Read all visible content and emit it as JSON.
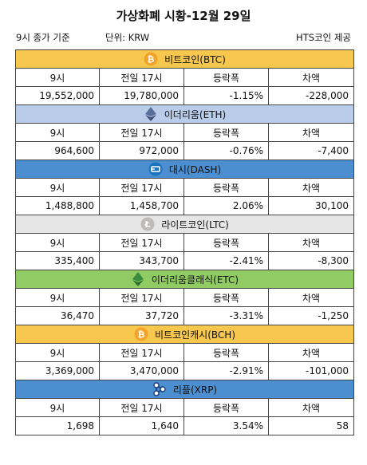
{
  "title": "가상화폐 시황-12월 29일",
  "meta": {
    "time": "9시 종가 기준",
    "unit": "단위: KRW",
    "source": "HTS코인 제공"
  },
  "headers": {
    "c1": "9시",
    "c2": "전일 17시",
    "c3": "등락폭",
    "c4": "차액"
  },
  "colors": {
    "btc": "#f8c84e",
    "eth": "#b9cdea",
    "dash": "#4b8fd0",
    "ltc": "#e6e6e6",
    "etc": "#90cc63",
    "bch": "#f8c84e",
    "xrp": "#4b8fd0"
  },
  "coins": [
    {
      "name": "비트코인(BTC)",
      "icon": "bitcoin-icon",
      "now": "19,552,000",
      "prev": "19,780,000",
      "pct": "-1.15%",
      "diff": "-228,000"
    },
    {
      "name": "이더리움(ETH)",
      "icon": "ethereum-icon",
      "now": "964,600",
      "prev": "972,000",
      "pct": "-0.76%",
      "diff": "-7,400"
    },
    {
      "name": "대시(DASH)",
      "icon": "dash-icon",
      "now": "1,488,800",
      "prev": "1,458,700",
      "pct": "2.06%",
      "diff": "30,100"
    },
    {
      "name": "라이트코인(LTC)",
      "icon": "litecoin-icon",
      "now": "335,400",
      "prev": "343,700",
      "pct": "-2.41%",
      "diff": "-8,300"
    },
    {
      "name": "이더리움클래식(ETC)",
      "icon": "ethereum-classic-icon",
      "now": "36,470",
      "prev": "37,720",
      "pct": "-3.31%",
      "diff": "-1,250"
    },
    {
      "name": "비트코인캐시(BCH)",
      "icon": "bitcoin-cash-icon",
      "now": "3,369,000",
      "prev": "3,470,000",
      "pct": "-2.91%",
      "diff": "-101,000"
    },
    {
      "name": "리플(XRP)",
      "icon": "ripple-icon",
      "now": "1,698",
      "prev": "1,640",
      "pct": "3.54%",
      "diff": "58"
    }
  ]
}
